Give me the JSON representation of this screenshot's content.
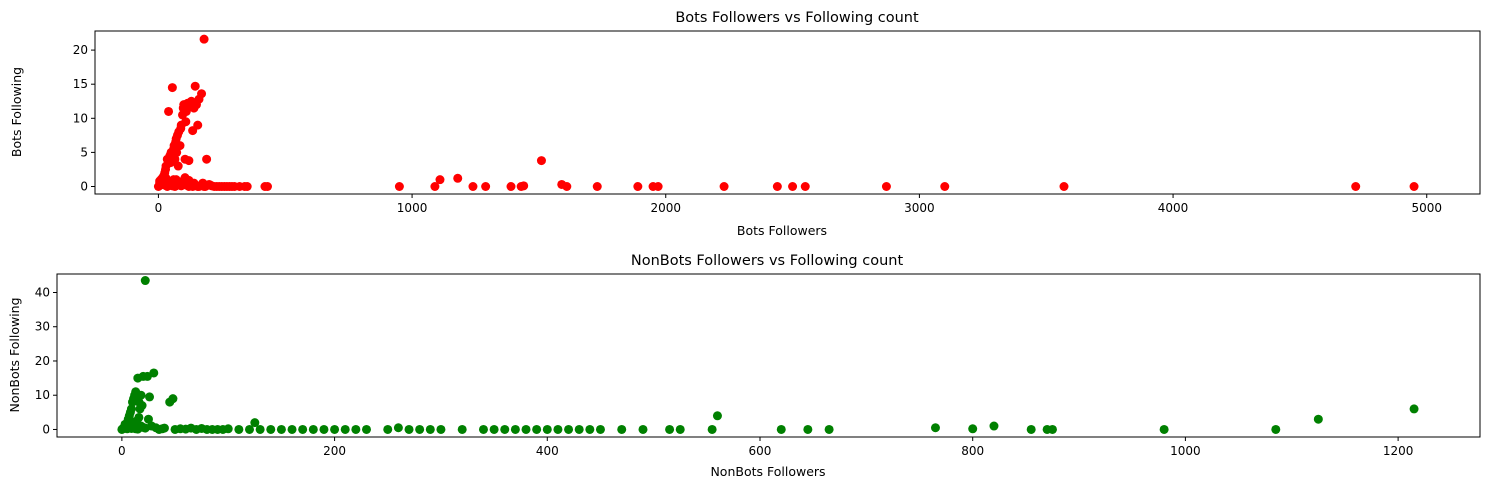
{
  "chart_data": [
    {
      "type": "scatter",
      "title": "Bots Followers vs Following count",
      "xlabel": "Bots Followers",
      "ylabel": "Bots Following",
      "xlim": [
        -250,
        5210
      ],
      "ylim": [
        -1.1,
        22.8
      ],
      "xticks": [
        0,
        1000,
        2000,
        3000,
        4000,
        5000
      ],
      "yticks": [
        0,
        5,
        10,
        15,
        20
      ],
      "grid": false,
      "color": "#ff0000",
      "x": [
        0,
        3,
        5,
        8,
        10,
        12,
        15,
        18,
        20,
        25,
        28,
        30,
        35,
        40,
        45,
        48,
        50,
        55,
        60,
        62,
        65,
        68,
        70,
        72,
        75,
        78,
        80,
        85,
        88,
        90,
        95,
        98,
        100,
        105,
        108,
        110,
        115,
        120,
        125,
        130,
        135,
        140,
        145,
        150,
        155,
        160,
        170,
        175,
        180,
        190,
        200,
        205,
        210,
        220,
        230,
        240,
        250,
        260,
        270,
        280,
        290,
        300,
        320,
        340,
        350,
        420,
        430,
        5,
        15,
        25,
        35,
        45,
        55,
        65,
        75,
        85,
        95,
        105,
        115,
        125,
        135,
        145,
        155,
        165,
        185,
        195,
        60,
        80,
        100,
        120,
        140,
        30,
        50,
        70,
        90,
        110,
        950,
        1090,
        1110,
        1180,
        1240,
        1290,
        1390,
        1430,
        1440,
        1510,
        1590,
        1610,
        1730,
        1890,
        1950,
        1970,
        2230,
        2440,
        2500,
        2550,
        2870,
        3100,
        3570,
        4720,
        4950,
        5,
        10,
        15,
        20,
        25,
        30,
        35,
        40,
        45,
        50,
        60,
        70,
        80,
        90,
        100,
        110,
        120,
        140,
        160,
        180
      ],
      "y": [
        0,
        0.1,
        0.2,
        0.4,
        0.3,
        0.5,
        0.8,
        1.1,
        1.5,
        2,
        2.5,
        3,
        4,
        11,
        4.5,
        3.5,
        5,
        14.5,
        5.5,
        6,
        4,
        6.5,
        7,
        5,
        7.5,
        3,
        8,
        6,
        8.5,
        9,
        10.5,
        11.5,
        12,
        4,
        9.5,
        11,
        12.2,
        3.8,
        11.8,
        12.5,
        8.2,
        11.5,
        14.7,
        12,
        9,
        12.8,
        13.6,
        0.5,
        21.6,
        4,
        0.3,
        0.2,
        0.1,
        0,
        0,
        0,
        0,
        0,
        0,
        0,
        0,
        0,
        0,
        0,
        0,
        0,
        0,
        0.6,
        0.4,
        0.2,
        0,
        0.3,
        0.1,
        0,
        0.2,
        0.5,
        0.3,
        1.3,
        0.2,
        0.1,
        0,
        0.2,
        0,
        0.1,
        0,
        0.2,
        1,
        0.4,
        0.3,
        0.9,
        0.5,
        1.2,
        0.6,
        1,
        0.7,
        0.5,
        0,
        0,
        1,
        1.2,
        0,
        0,
        0,
        0,
        0.1,
        3.8,
        0.3,
        0,
        0,
        0,
        0,
        0,
        0,
        0,
        0,
        0,
        0,
        0,
        0,
        0,
        0,
        0.8,
        1,
        1.2,
        0.9,
        0.6,
        0.7,
        0.4,
        0.6,
        0.2,
        0.3,
        0.5,
        0.4,
        0.2,
        0.1,
        0.3,
        0.2,
        0,
        0.1,
        0,
        0
      ]
    },
    {
      "type": "scatter",
      "title": "NonBots Followers vs Following count",
      "xlabel": "NonBots Followers",
      "ylabel": "NonBots Following",
      "xlim": [
        -61,
        1277
      ],
      "ylim": [
        -2.2,
        45.4
      ],
      "xticks": [
        0,
        200,
        400,
        600,
        800,
        1000,
        1200
      ],
      "yticks": [
        0,
        10,
        20,
        30,
        40
      ],
      "grid": false,
      "color": "#008000",
      "x": [
        0,
        1,
        2,
        3,
        4,
        5,
        6,
        7,
        8,
        9,
        10,
        11,
        12,
        13,
        14,
        15,
        16,
        17,
        18,
        19,
        20,
        22,
        24,
        25,
        26,
        28,
        30,
        32,
        35,
        38,
        40,
        45,
        48,
        50,
        55,
        60,
        65,
        70,
        75,
        80,
        85,
        90,
        95,
        100,
        110,
        120,
        125,
        130,
        140,
        150,
        160,
        170,
        180,
        190,
        200,
        210,
        220,
        230,
        250,
        260,
        270,
        280,
        290,
        300,
        320,
        340,
        350,
        360,
        370,
        380,
        390,
        400,
        410,
        420,
        430,
        440,
        450,
        470,
        490,
        515,
        525,
        555,
        560,
        620,
        645,
        665,
        765,
        800,
        820,
        855,
        870,
        875,
        980,
        1085,
        1125,
        1215,
        2,
        4,
        6,
        8,
        10,
        12,
        14,
        16,
        18,
        20,
        22,
        5,
        7,
        9,
        11,
        13,
        15,
        3,
        6,
        9,
        12,
        15
      ],
      "y": [
        0,
        0.3,
        0.6,
        1,
        1.5,
        2,
        3,
        4,
        5,
        6,
        8,
        9,
        10,
        11,
        9.5,
        15,
        8,
        6,
        10,
        7,
        15.5,
        43.5,
        15.5,
        3,
        9.5,
        1,
        16.5,
        0.5,
        0,
        0.2,
        0.4,
        8,
        9,
        0,
        0.2,
        0.1,
        0.4,
        0,
        0.3,
        0,
        0,
        0,
        0,
        0.2,
        0,
        0,
        2,
        0,
        0,
        0,
        0,
        0,
        0,
        0,
        0,
        0,
        0,
        0,
        0,
        0.5,
        0,
        0,
        0,
        0,
        0,
        0,
        0,
        0,
        0,
        0,
        0,
        0,
        0,
        0,
        0,
        0,
        0,
        0,
        0,
        0,
        0,
        0,
        4,
        0,
        0,
        0,
        0.5,
        0.2,
        1,
        0,
        0,
        0,
        0,
        0,
        3,
        6,
        0.5,
        0.8,
        1.2,
        0.9,
        0.7,
        1.8,
        2.5,
        3.5,
        1,
        0.6,
        0.4,
        0.2,
        0.5,
        0.3,
        0.4,
        0.2,
        0.1,
        1.5,
        2,
        2.2,
        1.3,
        0.8
      ]
    }
  ]
}
